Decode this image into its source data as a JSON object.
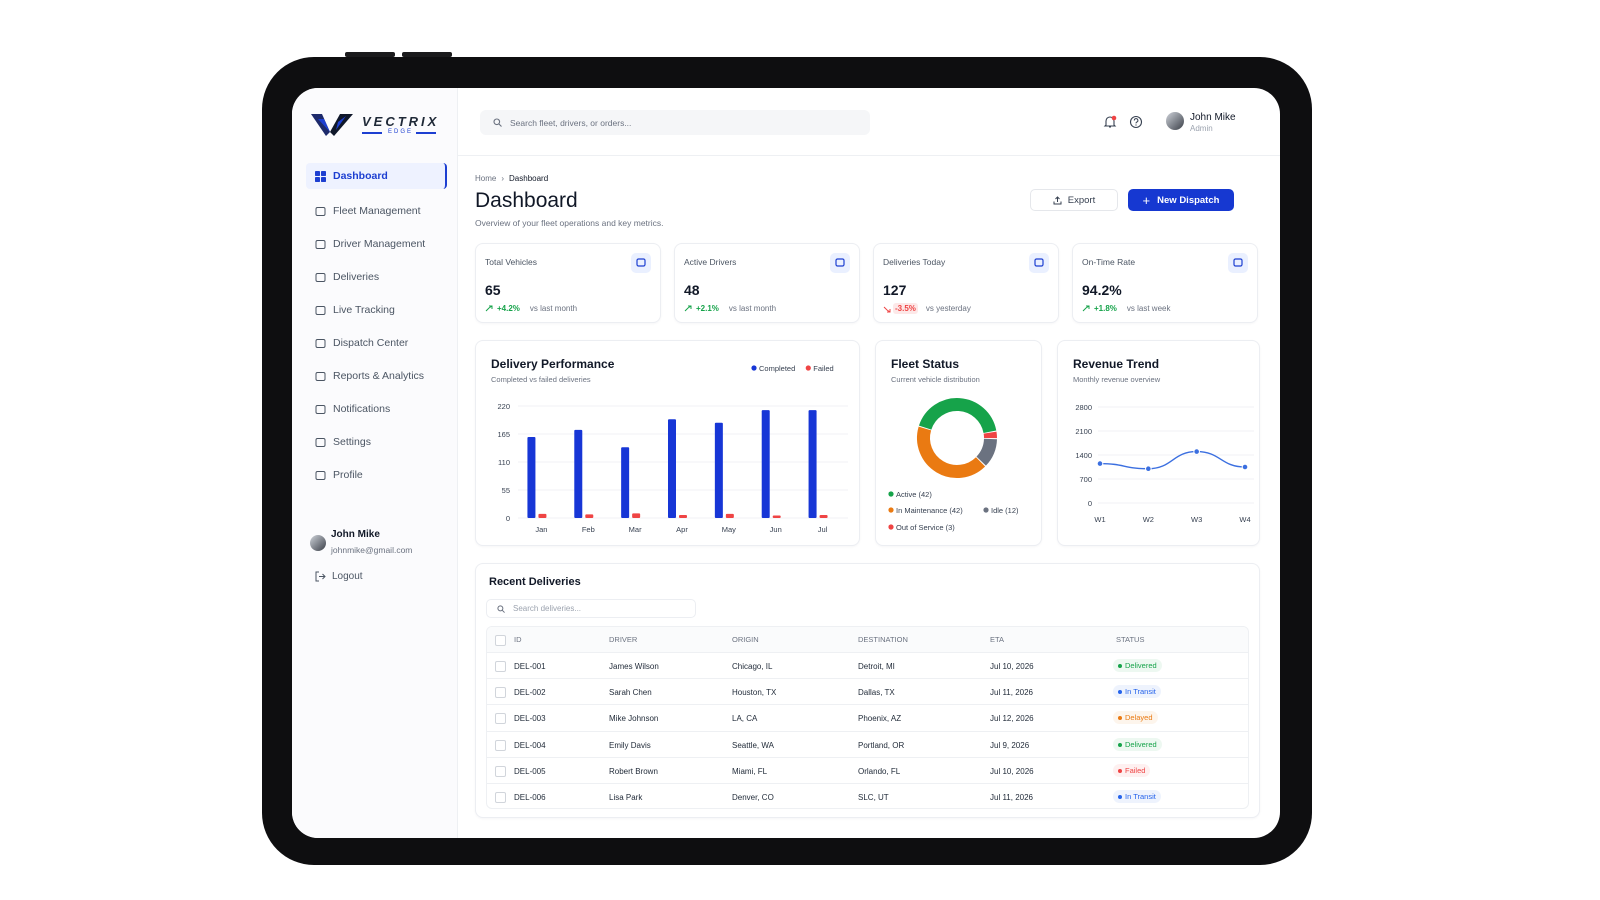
{
  "brand": {
    "name": "VECTRIX",
    "tagline": "EDGE"
  },
  "search": "Search fleet, drivers, or orders...",
  "user": {
    "name": "John Mike",
    "role": "Admin",
    "email": "johnmike@gmail.com"
  },
  "nav": [
    "Dashboard",
    "Fleet Management",
    "Driver Management",
    "Deliveries",
    "Live Tracking",
    "Dispatch Center",
    "Reports & Analytics",
    "Notifications",
    "Settings",
    "Profile"
  ],
  "active_nav": 0,
  "logout": "Logout",
  "breadcrumb": [
    "Home",
    "Dashboard"
  ],
  "page": {
    "title": "Dashboard",
    "subtitle": "Overview of your fleet operations and key metrics."
  },
  "buttons": {
    "export": "Export",
    "primary": "New Dispatch"
  },
  "kpis": [
    {
      "label": "Total Vehicles",
      "value": 65,
      "change": "+4.2%",
      "comparison": "vs last month",
      "trend": "up",
      "trend_color": "#16a34a"
    },
    {
      "label": "Active Drivers",
      "value": 48,
      "change": "+2.1%",
      "comparison": "vs last month",
      "trend": "up",
      "trend_color": "#16a34a"
    },
    {
      "label": "Deliveries Today",
      "value": 127,
      "change": "-3.5%",
      "comparison": "vs yesterday",
      "trend": "down",
      "trend_color": "#ef4444"
    },
    {
      "label": "On-Time Rate",
      "value": "94.2%",
      "change": "+1.8%",
      "comparison": "vs last week",
      "trend": "up",
      "trend_color": "#16a34a"
    }
  ],
  "chart_data": [
    {
      "type": "bar",
      "title": "Delivery Performance",
      "subtitle": "Completed vs failed deliveries",
      "categories": [
        "Jan",
        "Feb",
        "Mar",
        "Apr",
        "May",
        "Jun",
        "Jul"
      ],
      "series": [
        {
          "name": "Completed",
          "color": "#1736d6",
          "values": [
            159,
            173,
            139,
            194,
            187,
            212,
            212
          ]
        },
        {
          "name": "Failed",
          "color": "#ef4444",
          "values": [
            8,
            7,
            9,
            6,
            8,
            5,
            6
          ]
        }
      ],
      "ylim": [
        0,
        220
      ],
      "yticks": [
        0,
        55,
        110,
        165,
        220
      ],
      "grid": true
    },
    {
      "type": "donut",
      "title": "Fleet Status",
      "subtitle": "Current vehicle distribution",
      "categories": [
        "Active (42)",
        "In Maintenance (42)",
        "Idle (12)",
        "Out of Service (3)"
      ],
      "values": [
        42,
        42,
        12,
        3
      ],
      "colors": [
        "#16a34a",
        "#ea7a12",
        "#6b7280",
        "#ef4444"
      ]
    },
    {
      "type": "line",
      "title": "Revenue Trend",
      "subtitle": "Monthly revenue overview",
      "categories": [
        "W1",
        "W2",
        "W3",
        "W4"
      ],
      "values": [
        1150,
        1000,
        1500,
        1050
      ],
      "color": "#3b6fe0",
      "ylim": [
        0,
        2800
      ],
      "yticks": [
        0,
        700,
        1400,
        2100,
        2800
      ],
      "grid": true
    }
  ],
  "recent": {
    "title": "Recent Deliveries",
    "search": "Search deliveries...",
    "columns": [
      "ID",
      "DRIVER",
      "ORIGIN",
      "DESTINATION",
      "ETA",
      "STATUS"
    ],
    "rows": [
      {
        "cells": [
          "DEL-001",
          "James Wilson",
          "Chicago, IL",
          "Detroit, MI",
          "Jul 10, 2026",
          "Delivered"
        ],
        "status_color": "#16a34a"
      },
      {
        "cells": [
          "DEL-002",
          "Sarah Chen",
          "Houston, TX",
          "Dallas, TX",
          "Jul 11, 2026",
          "In Transit"
        ],
        "status_color": "#2563eb"
      },
      {
        "cells": [
          "DEL-003",
          "Mike Johnson",
          "LA, CA",
          "Phoenix, AZ",
          "Jul 12, 2026",
          "Delayed"
        ],
        "status_color": "#ea7a12"
      },
      {
        "cells": [
          "DEL-004",
          "Emily Davis",
          "Seattle, WA",
          "Portland, OR",
          "Jul 9, 2026",
          "Delivered"
        ],
        "status_color": "#16a34a"
      },
      {
        "cells": [
          "DEL-005",
          "Robert Brown",
          "Miami, FL",
          "Orlando, FL",
          "Jul 10, 2026",
          "Failed"
        ],
        "status_color": "#ef4444"
      },
      {
        "cells": [
          "DEL-006",
          "Lisa Park",
          "Denver, CO",
          "SLC, UT",
          "Jul 11, 2026",
          "In Transit"
        ],
        "status_color": "#2563eb"
      }
    ]
  }
}
